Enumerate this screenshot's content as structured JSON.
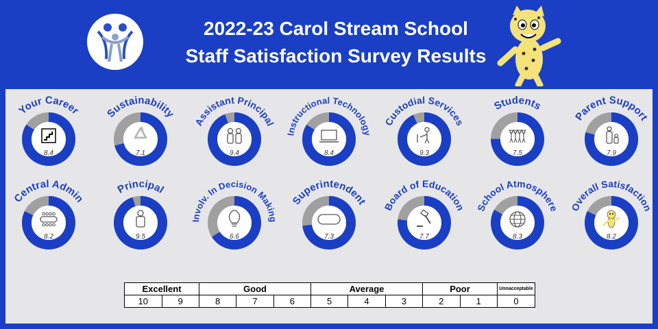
{
  "header": {
    "title_line1": "2022-23 Carol Stream School",
    "title_line2": "Staff Satisfaction Survey Results"
  },
  "colors": {
    "blue": "#1a3fc4",
    "gray": "#a0a0a0",
    "panel": "#e6e6e9"
  },
  "chart_data": {
    "type": "pie",
    "max": 10,
    "items": [
      {
        "label": "Your Career",
        "value": 8.4,
        "icon": "stairs-icon"
      },
      {
        "label": "Sustainability",
        "value": 7.1,
        "icon": "recycle-icon"
      },
      {
        "label": "Assistant Principal",
        "value": 9.4,
        "icon": "two-people-icon"
      },
      {
        "label": "Instructional Technology",
        "value": 8.4,
        "icon": "laptop-icon"
      },
      {
        "label": "Custodial Services",
        "value": 9.3,
        "icon": "custodian-icon"
      },
      {
        "label": "Students",
        "value": 7.5,
        "icon": "students-icon"
      },
      {
        "label": "Parent Support",
        "value": 7.9,
        "icon": "parent-child-icon"
      },
      {
        "label": "Central Admin",
        "value": 8.2,
        "icon": "conference-table-icon"
      },
      {
        "label": "Principal",
        "value": 9.5,
        "icon": "person-icon"
      },
      {
        "label": "Involv. In Decision Making",
        "value": 6.6,
        "icon": "lightbulb-icon"
      },
      {
        "label": "Superintendent",
        "value": 7.3,
        "icon": "capsule-icon"
      },
      {
        "label": "Board of Education",
        "value": 7.7,
        "icon": "gavel-icon"
      },
      {
        "label": "School Atmosphere",
        "value": 8.3,
        "icon": "globe-icon"
      },
      {
        "label": "Overall Satisfaction",
        "value": 8.2,
        "icon": "mascot-icon"
      }
    ]
  },
  "legend": {
    "categories": [
      "Excellent",
      "Good",
      "Average",
      "Poor",
      "Unnacceptable"
    ],
    "scores": [
      "10",
      "9",
      "8",
      "7",
      "6",
      "5",
      "4",
      "3",
      "2",
      "1",
      "0"
    ]
  }
}
